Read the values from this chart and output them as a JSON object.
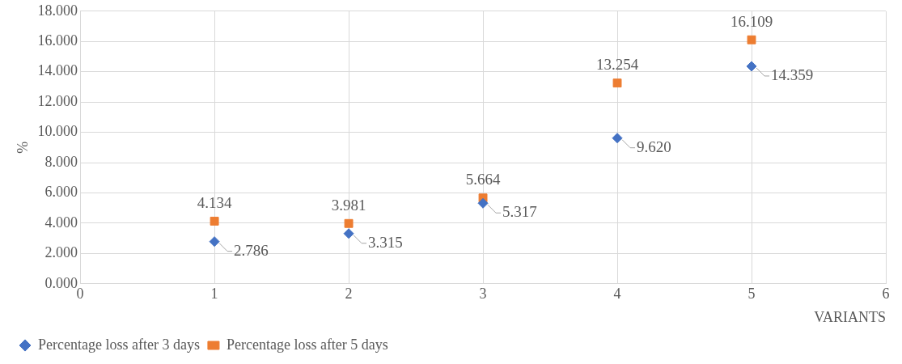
{
  "chart_data": {
    "type": "scatter",
    "xlabel": "VARIANTS",
    "ylabel": "%",
    "x": [
      1,
      2,
      3,
      4,
      5
    ],
    "series": [
      {
        "name": "Percentage loss after 3 days",
        "color": "#4472c4",
        "marker": "diamond",
        "values": [
          2.786,
          3.315,
          5.317,
          9.62,
          14.359
        ],
        "value_labels": [
          "2.786",
          "3.315",
          "5.317",
          "9.620",
          "14.359"
        ]
      },
      {
        "name": "Percentage loss after 5 days",
        "color": "#ed7d31",
        "marker": "square",
        "values": [
          4.134,
          3.981,
          5.664,
          13.254,
          16.109
        ],
        "value_labels": [
          "4.134",
          "3.981",
          "5.664",
          "13.254",
          "16.109"
        ]
      }
    ],
    "xlim": [
      0,
      6
    ],
    "xticks": [
      0,
      1,
      2,
      3,
      4,
      5,
      6
    ],
    "ylim": [
      0,
      18
    ],
    "yticks": [
      {
        "value": 0,
        "label": "0.000"
      },
      {
        "value": 2,
        "label": "2.000"
      },
      {
        "value": 4,
        "label": "4.000"
      },
      {
        "value": 6,
        "label": "6.000"
      },
      {
        "value": 8,
        "label": "8.000"
      },
      {
        "value": 10,
        "label": "10.000"
      },
      {
        "value": 12,
        "label": "12.000"
      },
      {
        "value": 14,
        "label": "14.000"
      },
      {
        "value": 16,
        "label": "16.000"
      },
      {
        "value": 18,
        "label": "18.000"
      }
    ],
    "grid": true,
    "legend": "bottom left"
  }
}
